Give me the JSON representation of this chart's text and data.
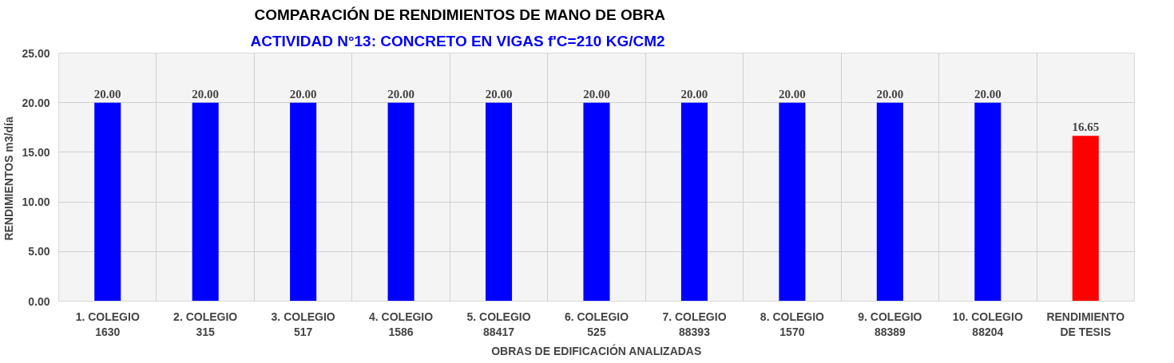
{
  "chart_data": {
    "type": "bar",
    "title": "COMPARACIÓN DE RENDIMIENTOS DE MANO DE OBRA",
    "subtitle": "ACTIVIDAD N°13: CONCRETO EN VIGAS f'C=210 KG/CM2",
    "xlabel": "OBRAS DE EDIFICACIÓN ANALIZADAS",
    "ylabel": "RENDIMIENTOS  m3/día",
    "categories": [
      "1. COLEGIO\n1630",
      "2. COLEGIO\n315",
      "3. COLEGIO\n517",
      "4. COLEGIO\n1586",
      "5. COLEGIO\n88417",
      "6. COLEGIO\n525",
      "7. COLEGIO\n88393",
      "8. COLEGIO\n1570",
      "9. COLEGIO\n88389",
      "10. COLEGIO\n88204",
      "RENDIMIENTO\nDE TESIS"
    ],
    "values": [
      20,
      20,
      20,
      20,
      20,
      20,
      20,
      20,
      20,
      20,
      16.65
    ],
    "colors": [
      "#0000ff",
      "#0000ff",
      "#0000ff",
      "#0000ff",
      "#0000ff",
      "#0000ff",
      "#0000ff",
      "#0000ff",
      "#0000ff",
      "#0000ff",
      "#ff0000"
    ],
    "value_labels": [
      "20.00",
      "20.00",
      "20.00",
      "20.00",
      "20.00",
      "20.00",
      "20.00",
      "20.00",
      "20.00",
      "20.00",
      "16.65"
    ],
    "ylim": [
      0,
      25
    ],
    "yticks": [
      {
        "value": 0,
        "label": "0.00"
      },
      {
        "value": 5,
        "label": "5.00"
      },
      {
        "value": 10,
        "label": "10.00"
      },
      {
        "value": 15,
        "label": "15.00"
      },
      {
        "value": 20,
        "label": "20.00"
      },
      {
        "value": 25,
        "label": "25.00"
      }
    ],
    "grid": true
  }
}
